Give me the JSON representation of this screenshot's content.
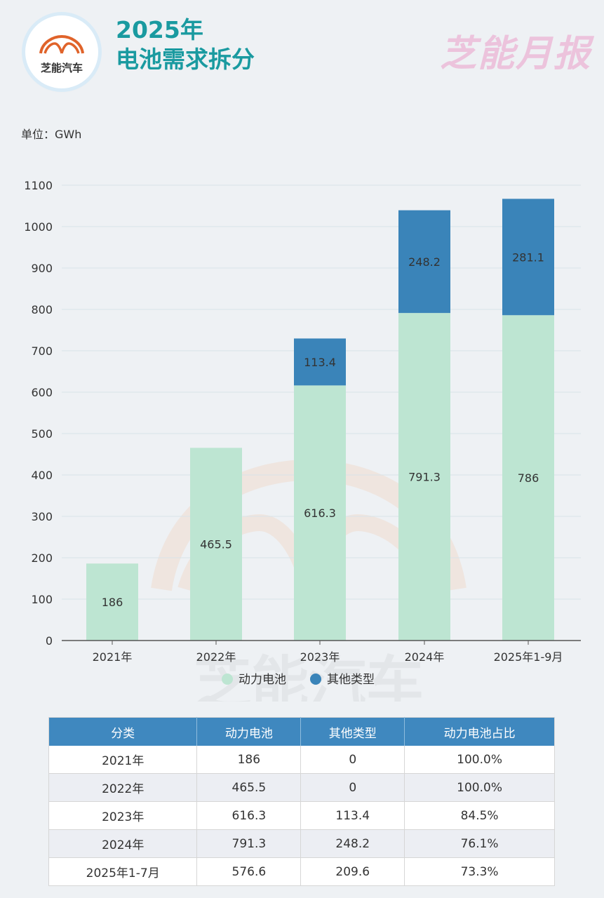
{
  "header": {
    "logo_text": "芝能汽车",
    "title_line1": "2025年",
    "title_line2": "电池需求拆分",
    "brand": "芝能月报"
  },
  "unit_label": "单位：GWh",
  "watermark": "芝能汽车",
  "colors": {
    "power": "#bde5d2",
    "other": "#3a84b9",
    "accent": "#1a9aa0",
    "table_header": "#3f88bf"
  },
  "chart_data": {
    "type": "bar",
    "stacked": true,
    "categories": [
      "2021年",
      "2022年",
      "2023年",
      "2024年",
      "2025年1-9月"
    ],
    "series": [
      {
        "name": "动力电池",
        "values": [
          186,
          465.5,
          616.3,
          791.3,
          786
        ]
      },
      {
        "name": "其他类型",
        "values": [
          0,
          0,
          113.4,
          248.2,
          281.1
        ]
      }
    ],
    "ylim": [
      0,
      1100
    ],
    "yticks": [
      0,
      100,
      200,
      300,
      400,
      500,
      600,
      700,
      800,
      900,
      1000,
      1100
    ],
    "grid": true,
    "legend": "bottom"
  },
  "table": {
    "headers": [
      "分类",
      "动力电池",
      "其他类型",
      "动力电池占比"
    ],
    "rows": [
      [
        "2021年",
        "186",
        "0",
        "100.0%"
      ],
      [
        "2022年",
        "465.5",
        "0",
        "100.0%"
      ],
      [
        "2023年",
        "616.3",
        "113.4",
        "84.5%"
      ],
      [
        "2024年",
        "791.3",
        "248.2",
        "76.1%"
      ],
      [
        "2025年1-7月",
        "576.6",
        "209.6",
        "73.3%"
      ]
    ]
  }
}
